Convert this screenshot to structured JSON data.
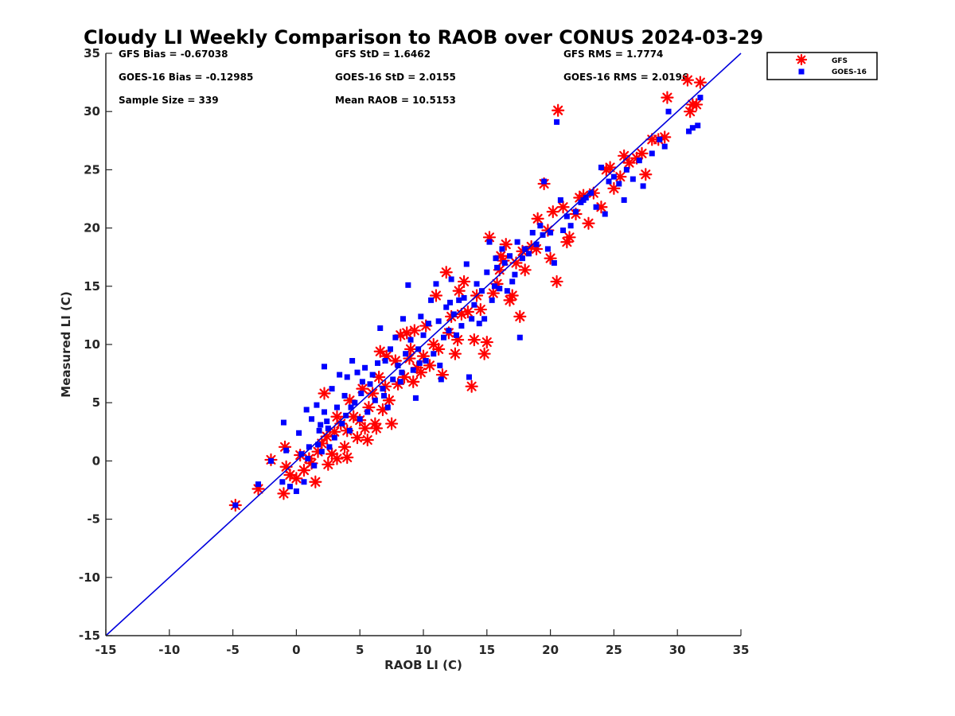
{
  "chart_data": {
    "type": "scatter",
    "title": "Cloudy LI Weekly Comparison to RAOB over CONUS 2024-03-29",
    "xlabel": "RAOB LI (C)",
    "ylabel": "Measured LI (C)",
    "xlim": [
      -15,
      35
    ],
    "ylim": [
      -15,
      35
    ],
    "xticks": [
      -15,
      -10,
      -5,
      0,
      5,
      10,
      15,
      20,
      25,
      30,
      35
    ],
    "yticks": [
      -15,
      -10,
      -5,
      0,
      5,
      10,
      15,
      20,
      25,
      30,
      35
    ],
    "grid": false,
    "legend_position": "outside-top-right",
    "reference_line": {
      "from": [
        -15,
        -15
      ],
      "to": [
        35,
        35
      ],
      "color": "#0000dd"
    },
    "stats": [
      [
        "GFS Bias = -0.67038",
        "GFS StD = 1.6462",
        "GFS RMS = 1.7774"
      ],
      [
        "GOES-16 Bias = -0.12985",
        "GOES-16 StD = 2.0155",
        "GOES-16 RMS = 2.0196"
      ],
      [
        "Sample Size = 339",
        "Mean RAOB = 10.5153",
        ""
      ]
    ],
    "series": [
      {
        "name": "GFS",
        "marker": "asterisk",
        "color": "#ff0000",
        "points": [
          [
            -4.8,
            -3.8
          ],
          [
            -3,
            -2.4
          ],
          [
            -2,
            0.1
          ],
          [
            -1,
            -2.8
          ],
          [
            -0.9,
            1.2
          ],
          [
            -0.5,
            -1.2
          ],
          [
            -0.8,
            -0.5
          ],
          [
            0,
            -1.5
          ],
          [
            0.3,
            0.5
          ],
          [
            0.6,
            -0.8
          ],
          [
            1,
            0.2
          ],
          [
            1.2,
            -0.2
          ],
          [
            1.5,
            -1.8
          ],
          [
            1.7,
            0.8
          ],
          [
            2,
            1.5
          ],
          [
            2.2,
            5.8
          ],
          [
            2.4,
            2.1
          ],
          [
            2.5,
            -0.3
          ],
          [
            2.8,
            0.6
          ],
          [
            3,
            2.5
          ],
          [
            3.2,
            0.2
          ],
          [
            3.5,
            3.2
          ],
          [
            3.8,
            1.2
          ],
          [
            4,
            2.6
          ],
          [
            4.2,
            5.2
          ],
          [
            4.5,
            3.8
          ],
          [
            4.8,
            2
          ],
          [
            5,
            3.5
          ],
          [
            5.2,
            6.2
          ],
          [
            5.4,
            2.8
          ],
          [
            5.7,
            4.6
          ],
          [
            6,
            5.8
          ],
          [
            6.2,
            3.2
          ],
          [
            6.5,
            7.2
          ],
          [
            6.6,
            9.4
          ],
          [
            6.8,
            4.4
          ],
          [
            7,
            6.4
          ],
          [
            7.3,
            5.2
          ],
          [
            7.5,
            3.2
          ],
          [
            7.8,
            8.6
          ],
          [
            8,
            6.6
          ],
          [
            8.2,
            10.8
          ],
          [
            8.5,
            7.2
          ],
          [
            8.7,
            11
          ],
          [
            9,
            9.6
          ],
          [
            9.2,
            6.8
          ],
          [
            9.3,
            11.2
          ],
          [
            9.5,
            8
          ],
          [
            9.8,
            7.6
          ],
          [
            10,
            9
          ],
          [
            10.2,
            11.6
          ],
          [
            10.5,
            8.2
          ],
          [
            10.8,
            10
          ],
          [
            11,
            14.2
          ],
          [
            11.2,
            9.6
          ],
          [
            11.5,
            7.4
          ],
          [
            11.8,
            16.2
          ],
          [
            12,
            11
          ],
          [
            12.2,
            12.4
          ],
          [
            12.5,
            9.2
          ],
          [
            12.8,
            14.6
          ],
          [
            13,
            12.6
          ],
          [
            13.2,
            15.4
          ],
          [
            13.5,
            12.8
          ],
          [
            13.8,
            6.4
          ],
          [
            14,
            10.4
          ],
          [
            14.2,
            14.2
          ],
          [
            14.5,
            13
          ],
          [
            14.8,
            9.2
          ],
          [
            15,
            10.2
          ],
          [
            15.2,
            19.2
          ],
          [
            15.5,
            14.4
          ],
          [
            15.8,
            15.2
          ],
          [
            16,
            16.4
          ],
          [
            16.3,
            17.2
          ],
          [
            16.5,
            18.6
          ],
          [
            16.8,
            13.8
          ],
          [
            17,
            14.2
          ],
          [
            17.3,
            17
          ],
          [
            17.6,
            12.4
          ],
          [
            17.8,
            18
          ],
          [
            18,
            16.4
          ],
          [
            18.5,
            18.4
          ],
          [
            19,
            20.8
          ],
          [
            19.5,
            23.8
          ],
          [
            19.8,
            19.8
          ],
          [
            20,
            17.4
          ],
          [
            20.2,
            21.4
          ],
          [
            20.5,
            15.4
          ],
          [
            20.6,
            30.1
          ],
          [
            21,
            21.8
          ],
          [
            21.3,
            18.8
          ],
          [
            21.5,
            19.2
          ],
          [
            22,
            21.2
          ],
          [
            22.3,
            22.6
          ],
          [
            22.6,
            22.8
          ],
          [
            23,
            20.4
          ],
          [
            23.4,
            23
          ],
          [
            24,
            21.8
          ],
          [
            24.4,
            25
          ],
          [
            24.7,
            25.2
          ],
          [
            25,
            23.4
          ],
          [
            25.5,
            24.4
          ],
          [
            25.8,
            26.2
          ],
          [
            26.2,
            25.6
          ],
          [
            26.8,
            26
          ],
          [
            27.2,
            26.4
          ],
          [
            27.5,
            24.6
          ],
          [
            28,
            27.6
          ],
          [
            28.5,
            27.6
          ],
          [
            29,
            27.8
          ],
          [
            29.2,
            31.2
          ],
          [
            30.8,
            32.7
          ],
          [
            31,
            30
          ],
          [
            31.2,
            30.6
          ],
          [
            31.5,
            30.6
          ],
          [
            31.8,
            32.5
          ],
          [
            4,
            0.3
          ],
          [
            3.2,
            3.8
          ],
          [
            6.3,
            2.8
          ],
          [
            5.6,
            1.8
          ],
          [
            7.1,
            9
          ],
          [
            8.9,
            8.8
          ],
          [
            12.7,
            10.4
          ],
          [
            16.1,
            17.6
          ],
          [
            18.9,
            18.2
          ]
        ]
      },
      {
        "name": "GOES-16",
        "marker": "square",
        "color": "#0000ff",
        "points": [
          [
            -4.8,
            -3.8
          ],
          [
            -3,
            -2
          ],
          [
            -2,
            0
          ],
          [
            -1,
            3.3
          ],
          [
            -1.1,
            -1.8
          ],
          [
            -0.8,
            0.9
          ],
          [
            -0.5,
            -2.2
          ],
          [
            0,
            -2.6
          ],
          [
            0.2,
            2.4
          ],
          [
            0.4,
            0.6
          ],
          [
            0.6,
            -1.8
          ],
          [
            0.8,
            4.4
          ],
          [
            1,
            1.2
          ],
          [
            1.2,
            3.6
          ],
          [
            1.4,
            -0.4
          ],
          [
            1.6,
            4.8
          ],
          [
            1.8,
            2.6
          ],
          [
            2,
            0.8
          ],
          [
            2.2,
            8.1
          ],
          [
            2.4,
            3.4
          ],
          [
            2.6,
            1.2
          ],
          [
            2.8,
            6.2
          ],
          [
            3,
            2
          ],
          [
            3.2,
            4.6
          ],
          [
            3.4,
            7.4
          ],
          [
            3.6,
            3.2
          ],
          [
            3.8,
            5.6
          ],
          [
            4,
            7.2
          ],
          [
            4.2,
            2.6
          ],
          [
            4.4,
            8.6
          ],
          [
            4.6,
            5
          ],
          [
            4.8,
            7.6
          ],
          [
            5,
            3.6
          ],
          [
            5.2,
            6.8
          ],
          [
            5.4,
            8
          ],
          [
            5.6,
            4.2
          ],
          [
            5.8,
            6.6
          ],
          [
            6,
            7.4
          ],
          [
            6.2,
            5.2
          ],
          [
            6.4,
            8.4
          ],
          [
            6.6,
            11.4
          ],
          [
            6.8,
            6.2
          ],
          [
            7,
            8.6
          ],
          [
            7.2,
            4.6
          ],
          [
            7.4,
            9.6
          ],
          [
            7.6,
            7
          ],
          [
            7.8,
            10.6
          ],
          [
            8,
            8.2
          ],
          [
            8.2,
            6.8
          ],
          [
            8.4,
            12.2
          ],
          [
            8.6,
            9.2
          ],
          [
            8.8,
            15.1
          ],
          [
            9,
            10.4
          ],
          [
            9.2,
            7.8
          ],
          [
            9.4,
            5.4
          ],
          [
            9.6,
            9.6
          ],
          [
            9.8,
            12.4
          ],
          [
            10,
            10.8
          ],
          [
            10.2,
            8.6
          ],
          [
            10.4,
            11.8
          ],
          [
            10.6,
            13.8
          ],
          [
            10.8,
            9.2
          ],
          [
            11,
            15.2
          ],
          [
            11.2,
            12
          ],
          [
            11.4,
            7
          ],
          [
            11.6,
            10.6
          ],
          [
            11.8,
            13.2
          ],
          [
            12,
            11.2
          ],
          [
            12.2,
            15.6
          ],
          [
            12.4,
            12.6
          ],
          [
            12.6,
            10.8
          ],
          [
            12.8,
            13.8
          ],
          [
            13,
            11.6
          ],
          [
            13.2,
            14
          ],
          [
            13.4,
            16.9
          ],
          [
            13.6,
            7.2
          ],
          [
            13.8,
            12.2
          ],
          [
            14,
            13.4
          ],
          [
            14.2,
            15.2
          ],
          [
            14.4,
            11.8
          ],
          [
            14.6,
            14.6
          ],
          [
            14.8,
            12.2
          ],
          [
            15,
            16.2
          ],
          [
            15.2,
            18.8
          ],
          [
            15.4,
            13.8
          ],
          [
            15.6,
            15
          ],
          [
            15.8,
            16.6
          ],
          [
            16,
            14.8
          ],
          [
            16.2,
            18.2
          ],
          [
            16.4,
            17
          ],
          [
            16.6,
            14.6
          ],
          [
            16.8,
            17.6
          ],
          [
            17,
            15.4
          ],
          [
            17.2,
            16
          ],
          [
            17.4,
            18.8
          ],
          [
            17.6,
            10.6
          ],
          [
            17.8,
            17.4
          ],
          [
            18,
            18.2
          ],
          [
            18.3,
            17.8
          ],
          [
            18.6,
            19.6
          ],
          [
            18.9,
            18.6
          ],
          [
            19.2,
            20.2
          ],
          [
            19.5,
            24
          ],
          [
            19.8,
            18.2
          ],
          [
            20,
            19.6
          ],
          [
            20.3,
            17
          ],
          [
            20.5,
            29.1
          ],
          [
            20.8,
            22.4
          ],
          [
            21,
            19.8
          ],
          [
            21.3,
            21
          ],
          [
            21.6,
            20.2
          ],
          [
            22,
            21.4
          ],
          [
            22.4,
            22.2
          ],
          [
            22.8,
            22.6
          ],
          [
            23.2,
            23
          ],
          [
            23.6,
            21.8
          ],
          [
            24,
            25.2
          ],
          [
            24.3,
            21.2
          ],
          [
            24.6,
            24
          ],
          [
            25,
            24.4
          ],
          [
            25.4,
            23.8
          ],
          [
            25.8,
            22.4
          ],
          [
            26,
            25
          ],
          [
            26.5,
            24.2
          ],
          [
            27,
            25.8
          ],
          [
            27.3,
            23.6
          ],
          [
            28,
            26.4
          ],
          [
            28.6,
            27.6
          ],
          [
            29,
            27
          ],
          [
            29.3,
            30
          ],
          [
            30.9,
            28.3
          ],
          [
            31.2,
            28.6
          ],
          [
            31.6,
            28.8
          ],
          [
            31.8,
            31.2
          ],
          [
            2.2,
            4.2
          ],
          [
            1.9,
            3.1
          ],
          [
            5.1,
            5.8
          ],
          [
            6.9,
            5.6
          ],
          [
            8.3,
            7.6
          ],
          [
            9.7,
            8.4
          ],
          [
            11.3,
            8.2
          ],
          [
            12.1,
            13.6
          ],
          [
            15.7,
            17.4
          ],
          [
            19.4,
            19.4
          ],
          [
            22.6,
            22.4
          ],
          [
            1.7,
            1.4
          ],
          [
            3.9,
            3.9
          ],
          [
            0.9,
            0.2
          ],
          [
            2.5,
            2.8
          ],
          [
            4.3,
            4.6
          ]
        ]
      }
    ]
  }
}
